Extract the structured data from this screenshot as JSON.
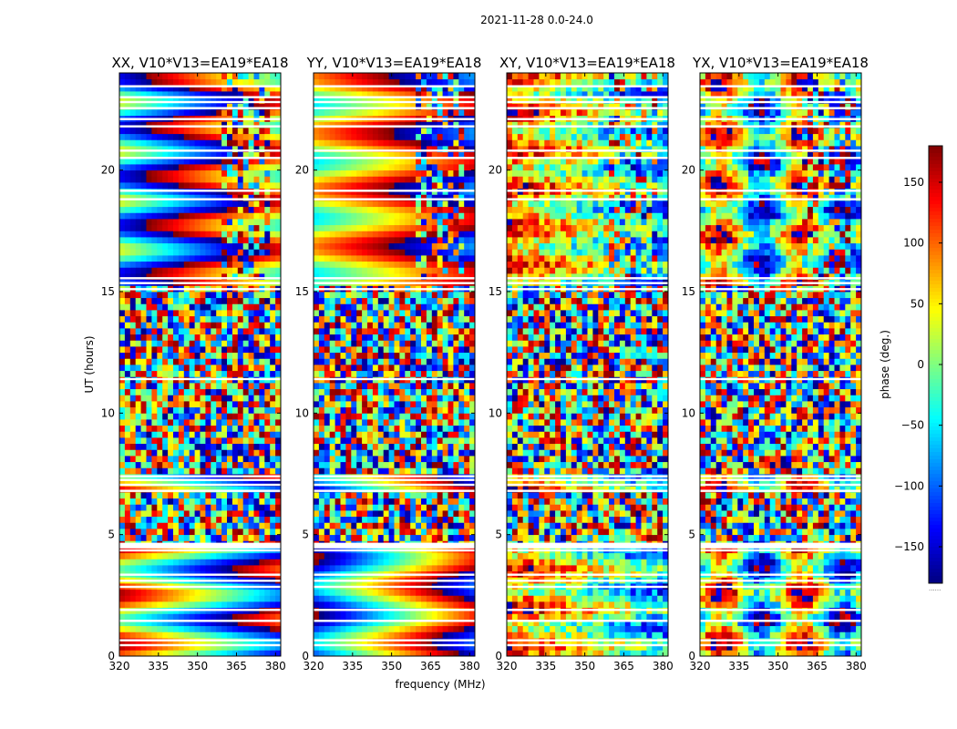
{
  "figure": {
    "suptitle": "2021-11-28 0.0-24.0",
    "xlabel": "frequency (MHz)",
    "ylabel": "UT (hours)",
    "colorbar_label": "phase (deg.)",
    "colorbar_dots": "......"
  },
  "chart_data": [
    {
      "type": "heatmap",
      "title": "XX, V10*V13=EA19*EA18",
      "xlim": [
        320,
        382
      ],
      "ylim": [
        0,
        24
      ],
      "x_ticks": [
        320,
        335,
        350,
        365,
        380
      ],
      "y_ticks": [
        0,
        5,
        10,
        15,
        20
      ],
      "pattern": "smooth_left_warm"
    },
    {
      "type": "heatmap",
      "title": "YY, V10*V13=EA19*EA18",
      "xlim": [
        320,
        382
      ],
      "ylim": [
        0,
        24
      ],
      "x_ticks": [
        320,
        335,
        350,
        365,
        380
      ],
      "y_ticks": [
        0,
        5,
        10,
        15,
        20
      ],
      "pattern": "smooth_right_warm"
    },
    {
      "type": "heatmap",
      "title": "XY, V10*V13=EA19*EA18",
      "xlim": [
        320,
        382
      ],
      "ylim": [
        0,
        24
      ],
      "x_ticks": [
        320,
        335,
        350,
        365,
        380
      ],
      "y_ticks": [
        0,
        5,
        10,
        15,
        20
      ],
      "pattern": "noisy_bands"
    },
    {
      "type": "heatmap",
      "title": "YX, V10*V13=EA19*EA18",
      "xlim": [
        320,
        382
      ],
      "ylim": [
        0,
        24
      ],
      "x_ticks": [
        320,
        335,
        350,
        365,
        380
      ],
      "y_ticks": [
        0,
        5,
        10,
        15,
        20
      ],
      "pattern": "noisy_stripes"
    }
  ],
  "colorbar": {
    "colormap": "jet",
    "vmin": -180,
    "vmax": 180,
    "ticks": [
      150,
      100,
      50,
      0,
      -50,
      -100,
      -150
    ],
    "tick_labels": [
      "150",
      "100",
      "50",
      "0",
      "−50",
      "−100",
      "−150"
    ]
  },
  "flag_gaps_hours": [
    0.45,
    0.65,
    1.45,
    1.9,
    2.85,
    3.1,
    3.35,
    4.35,
    4.55,
    4.62,
    6.8,
    7.05,
    7.25,
    7.4,
    11.4,
    15.1,
    15.35,
    15.55,
    18.8,
    19.15,
    20.5,
    20.8,
    21.8,
    22.1,
    22.55,
    22.8,
    23.0,
    23.45
  ],
  "noisy_ranges_hours": [
    [
      7.4,
      15.35
    ],
    [
      4.62,
      6.8
    ]
  ],
  "rfi_mhz": [
    360,
    377
  ],
  "colors": {
    "flag": "#ffffff",
    "frame": "#000000",
    "background": "#ffffff"
  }
}
